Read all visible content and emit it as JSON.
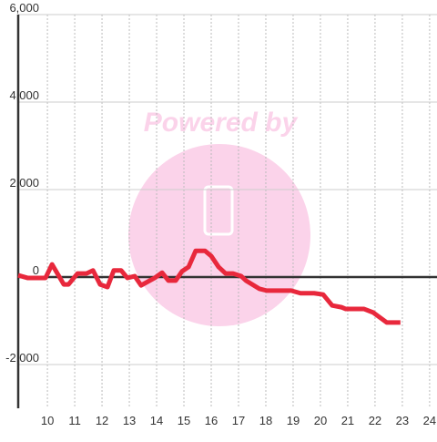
{
  "chart_data": {
    "type": "line",
    "watermark": "Powered by",
    "x": [
      8.93,
      9.27,
      9.93,
      10.17,
      10.6,
      10.77,
      11.1,
      11.43,
      11.67,
      11.93,
      12.2,
      12.43,
      12.7,
      12.93,
      13.2,
      13.43,
      13.93,
      14.2,
      14.43,
      14.7,
      14.93,
      15.17,
      15.43,
      15.77,
      16.0,
      16.27,
      16.53,
      16.8,
      17.1,
      17.27,
      17.77,
      18.03,
      18.93,
      19.27,
      19.77,
      20.1,
      20.43,
      20.77,
      20.93,
      21.6,
      21.93,
      22.43,
      22.93
    ],
    "series": [
      {
        "color": "#e8283c",
        "values": [
          40,
          -20,
          -20,
          290,
          -170,
          -170,
          80,
          80,
          150,
          -170,
          -230,
          150,
          150,
          -20,
          20,
          -190,
          -20,
          100,
          -80,
          -80,
          130,
          230,
          600,
          600,
          480,
          230,
          80,
          80,
          20,
          -80,
          -270,
          -310,
          -310,
          -370,
          -370,
          -400,
          -650,
          -690,
          -730,
          -730,
          -810,
          -1040,
          -1040
        ]
      }
    ],
    "xlim": [
      8.93,
      24.27
    ],
    "xticks": [
      10,
      11,
      12,
      13,
      14,
      15,
      16,
      17,
      18,
      19,
      20,
      21,
      22,
      23,
      24
    ],
    "ylim": [
      -3000,
      6000
    ],
    "yticks": [
      {
        "value": -2000,
        "label": "-2,000"
      },
      0,
      {
        "value": 2000,
        "label": "2,000"
      },
      {
        "value": 4000,
        "label": "4,000"
      },
      {
        "value": 6000,
        "label": "6,000"
      }
    ],
    "grid": true
  }
}
